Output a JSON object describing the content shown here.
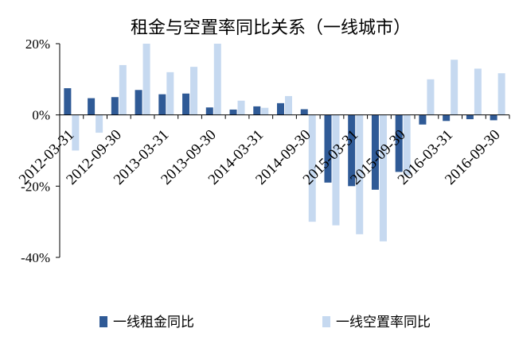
{
  "chart_data": {
    "type": "bar",
    "title": "租金与空置率同比关系（一线城市）",
    "xlabel": "",
    "ylabel": "",
    "ylim": [
      -0.4,
      0.2
    ],
    "y_ticks": [
      "20%",
      "0%",
      "-20%",
      "-40%"
    ],
    "y_tick_values": [
      0.2,
      0.0,
      -0.2,
      -0.4
    ],
    "categories": [
      "2012-03-31",
      "2012-06-30",
      "2012-09-30",
      "2012-12-31",
      "2013-03-31",
      "2013-06-30",
      "2013-09-30",
      "2013-12-31",
      "2014-03-31",
      "2014-06-30",
      "2014-09-30",
      "2014-12-31",
      "2015-03-31",
      "2015-06-30",
      "2015-09-30",
      "2015-12-31",
      "2016-03-31",
      "2016-06-30",
      "2016-09-30"
    ],
    "x_tick_labels": [
      "2012-03-31",
      "2012-09-30",
      "2013-03-31",
      "2013-09-30",
      "2014-03-31",
      "2014-09-30",
      "2015-03-31",
      "2015-09-30",
      "2016-03-31",
      "2016-09-30"
    ],
    "series": [
      {
        "name": "一线租金同比",
        "color": "#2f5a96",
        "values": [
          0.075,
          0.047,
          0.05,
          0.07,
          0.058,
          0.06,
          0.021,
          0.015,
          0.024,
          0.033,
          0.016,
          -0.19,
          -0.2,
          -0.21,
          -0.16,
          -0.027,
          -0.017,
          -0.012,
          -0.015
        ]
      },
      {
        "name": "一线空置率同比",
        "color": "#c6d9f0",
        "values": [
          -0.1,
          -0.05,
          0.14,
          0.2,
          0.12,
          0.135,
          0.2,
          0.04,
          0.02,
          0.053,
          -0.3,
          -0.31,
          -0.335,
          -0.355,
          -0.17,
          0.1,
          0.155,
          0.13,
          0.117
        ]
      }
    ],
    "grid": false,
    "legend_position": "bottom"
  }
}
